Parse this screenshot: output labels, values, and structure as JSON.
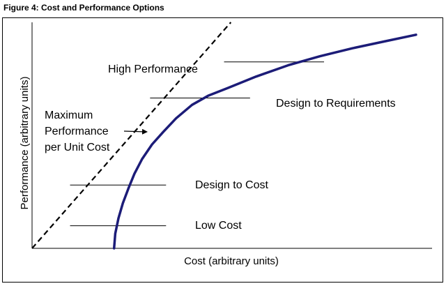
{
  "figure_title": "Figure 4: Cost and Performance Options",
  "chart_data": {
    "type": "line",
    "title": "",
    "xlabel": "Cost (arbitrary units)",
    "ylabel": "Performance (arbitrary units)",
    "xlim": [
      0,
      100
    ],
    "ylim": [
      0,
      100
    ],
    "grid": false,
    "series": [
      {
        "color": "#1c1c78",
        "x": [
          20.5,
          20.8,
          21.6,
          22.7,
          24.1,
          25.6,
          27.5,
          30.0,
          32.8,
          36.0,
          40.0,
          44.0,
          49.0,
          56.0,
          64.0,
          72.0,
          80.0,
          88.0,
          96.0
        ],
        "y": [
          0.0,
          6.5,
          13.3,
          20.0,
          26.5,
          33.0,
          39.5,
          46.0,
          51.5,
          57.5,
          63.5,
          67.5,
          71.0,
          76.0,
          81.0,
          85.0,
          88.5,
          91.5,
          94.5
        ]
      }
    ],
    "reference_line": {
      "style": "dashed",
      "label": "Maximum Performance per Unit Cost",
      "points": [
        [
          0,
          0
        ],
        [
          49.7,
          100
        ]
      ]
    },
    "options": [
      {
        "label": "High Performance",
        "y": 82.5,
        "x_start": 48,
        "x_end": 73
      },
      {
        "label": "Design to Requirements",
        "y": 66.5,
        "x_start": 29.5,
        "x_end": 54.5
      },
      {
        "label": "Design to Cost",
        "y": 28.0,
        "x_start": 9.5,
        "x_end": 33.5
      },
      {
        "label": "Low Cost",
        "y": 10.0,
        "x_start": 9.5,
        "x_end": 33.5
      }
    ],
    "annotation": {
      "lines": [
        "Maximum",
        "Performance",
        "per Unit Cost"
      ]
    }
  }
}
